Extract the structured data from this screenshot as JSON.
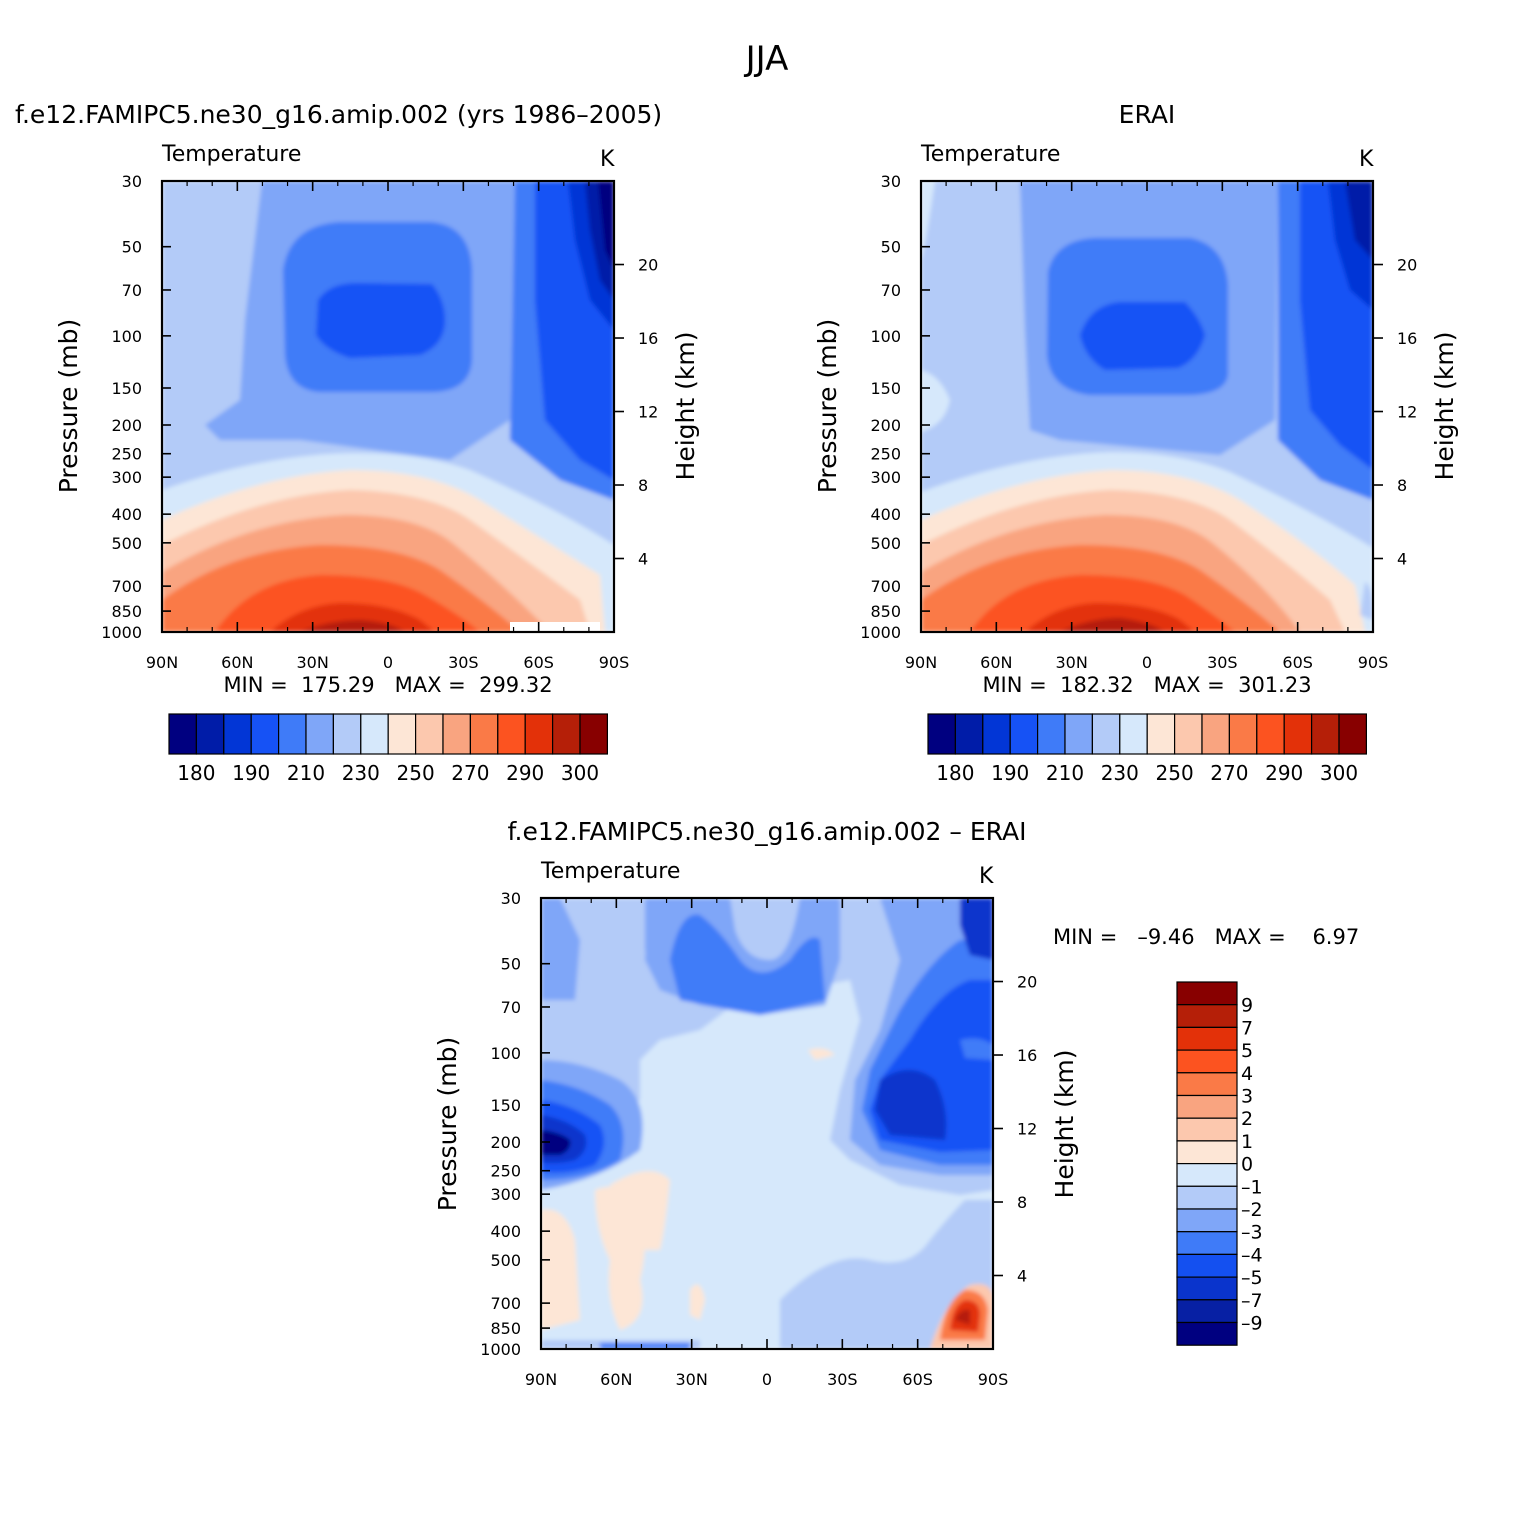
{
  "page_title": "JJA",
  "palette": {
    "temp": [
      "#000080",
      "#001ca8",
      "#0236d6",
      "#1652f5",
      "#3f7bf8",
      "#7fa6f8",
      "#b3cbf8",
      "#d6e8fb",
      "#fde6d6",
      "#fcc8ae",
      "#f9a480",
      "#fa7a47",
      "#fc5320",
      "#e33109",
      "#b51f08",
      "#880000"
    ],
    "diff": [
      "#000080",
      "#0720a4",
      "#0a34cc",
      "#1450f0",
      "#3f7bf8",
      "#7fa6f8",
      "#b3cbf8",
      "#d6e8fb",
      "#fde6d6",
      "#fcc8ae",
      "#f9a480",
      "#fa7a47",
      "#fc5320",
      "#e33109",
      "#b51f08",
      "#880000"
    ]
  },
  "panels": [
    {
      "title": "f.e12.FAMIPC5.ne30_g16.amip.002 (yrs 1986–2005)",
      "left_label": "Temperature",
      "right_label": "K",
      "ylabel": "Pressure (mb)",
      "y2label": "Height (km)",
      "minmax": "MIN =  175.29   MAX =  299.32",
      "colorbar_labels": [
        "180",
        "190",
        "210",
        "230",
        "250",
        "270",
        "290",
        "300"
      ]
    },
    {
      "title": "ERAI",
      "left_label": "Temperature",
      "right_label": "K",
      "ylabel": "Pressure (mb)",
      "y2label": "Height (km)",
      "minmax": "MIN =  182.32   MAX =  301.23",
      "colorbar_labels": [
        "180",
        "190",
        "210",
        "230",
        "250",
        "270",
        "290",
        "300"
      ]
    },
    {
      "title": "f.e12.FAMIPC5.ne30_g16.amip.002 – ERAI",
      "left_label": "Temperature",
      "right_label": "K",
      "ylabel": "Pressure (mb)",
      "y2label": "Height (km)",
      "minmax": "MIN =   –9.46   MAX =    6.97",
      "colorbar_labels": [
        "9",
        "7",
        "5",
        "4",
        "3",
        "2",
        "1",
        "0",
        "–1",
        "–2",
        "–3",
        "–4",
        "–5",
        "–7",
        "–9"
      ]
    }
  ],
  "chart_data": [
    {
      "type": "heatmap",
      "title": "f.e12.FAMIPC5.ne30_g16.amip.002 (yrs 1986–2005)",
      "variable": "Temperature",
      "units": "K",
      "ylabel": "Pressure (mb)",
      "y2label": "Height (km)",
      "xticks": [
        "90N",
        "60N",
        "30N",
        "0",
        "30S",
        "60S",
        "90S"
      ],
      "yticks": [
        30,
        50,
        70,
        100,
        150,
        200,
        250,
        300,
        400,
        500,
        700,
        850,
        1000
      ],
      "y2ticks": [
        4,
        8,
        12,
        16,
        20
      ],
      "min": 175.29,
      "max": 299.32,
      "levels": [
        180,
        190,
        210,
        230,
        250,
        270,
        290,
        300
      ]
    },
    {
      "type": "heatmap",
      "title": "ERAI",
      "variable": "Temperature",
      "units": "K",
      "ylabel": "Pressure (mb)",
      "y2label": "Height (km)",
      "xticks": [
        "90N",
        "60N",
        "30N",
        "0",
        "30S",
        "60S",
        "90S"
      ],
      "yticks": [
        30,
        50,
        70,
        100,
        150,
        200,
        250,
        300,
        400,
        500,
        700,
        850,
        1000
      ],
      "y2ticks": [
        4,
        8,
        12,
        16,
        20
      ],
      "min": 182.32,
      "max": 301.23,
      "levels": [
        180,
        190,
        210,
        230,
        250,
        270,
        290,
        300
      ]
    },
    {
      "type": "heatmap",
      "title": "f.e12.FAMIPC5.ne30_g16.amip.002 – ERAI",
      "variable": "Temperature",
      "units": "K",
      "ylabel": "Pressure (mb)",
      "y2label": "Height (km)",
      "xticks": [
        "90N",
        "60N",
        "30N",
        "0",
        "30S",
        "60S",
        "90S"
      ],
      "yticks": [
        30,
        50,
        70,
        100,
        150,
        200,
        250,
        300,
        400,
        500,
        700,
        850,
        1000
      ],
      "y2ticks": [
        4,
        8,
        12,
        16,
        20
      ],
      "min": -9.46,
      "max": 6.97,
      "levels": [
        9,
        7,
        5,
        4,
        3,
        2,
        1,
        0,
        -1,
        -2,
        -3,
        -4,
        -5,
        -7,
        -9
      ]
    }
  ]
}
